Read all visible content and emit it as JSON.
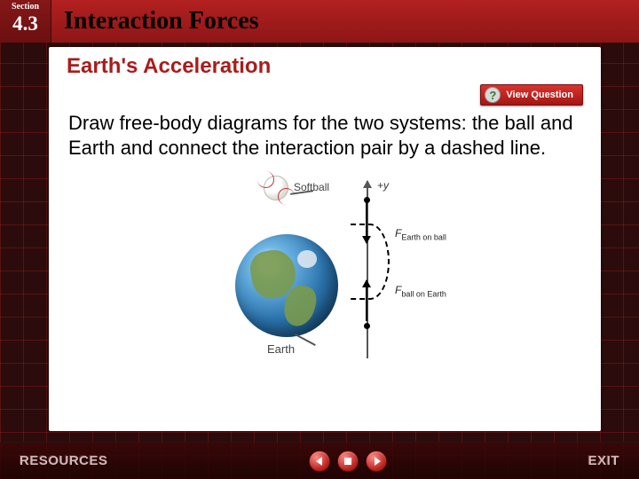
{
  "header": {
    "section_label": "Section",
    "section_number": "4.3",
    "title": "Interaction Forces"
  },
  "content": {
    "subheading": "Earth's Acceleration",
    "view_question_label": "View Question",
    "body_text": "Draw free-body diagrams for the two systems: the ball and Earth and connect the interaction pair by a dashed line."
  },
  "diagram": {
    "type": "physics-free-body",
    "axis_label": "+y",
    "objects": {
      "softball_label": "Softball",
      "earth_label": "Earth"
    },
    "forces": {
      "f1_symbol": "F",
      "f1_sub": "Earth on ball",
      "f2_symbol": "F",
      "f2_sub": "ball on Earth"
    },
    "colors": {
      "ocean": "#2b74ad",
      "land": "#7a9a4e",
      "axis": "#555555",
      "arrow": "#000000",
      "seam": "#c0392b"
    }
  },
  "footer": {
    "resources": "RESOURCES",
    "exit": "EXIT"
  }
}
